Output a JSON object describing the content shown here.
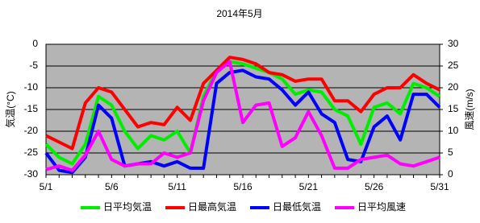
{
  "chart_data": {
    "type": "line",
    "title": "2014年5月",
    "ylabel": "気温(°C)",
    "y2label": "風速(m/s)",
    "categories": [
      "5/1",
      null,
      null,
      null,
      null,
      "5/6",
      null,
      null,
      null,
      null,
      "5/11",
      null,
      null,
      null,
      null,
      "5/16",
      null,
      null,
      null,
      null,
      "5/21",
      null,
      null,
      null,
      null,
      "5/26",
      null,
      null,
      null,
      null,
      "5/31"
    ],
    "ylim": [
      -30,
      0
    ],
    "yticks": [
      -30,
      -25,
      -20,
      -15,
      -10,
      -5,
      0
    ],
    "y2lim": [
      0,
      30
    ],
    "y2ticks": [
      0,
      5,
      10,
      15,
      20,
      25,
      30
    ],
    "grid": true,
    "legend": "bottom",
    "series": [
      {
        "name": "日平均気温",
        "color": "#00ee00",
        "values": [
          -23,
          -26,
          -27.5,
          -23,
          -12,
          -14,
          -20,
          -24,
          -21,
          -22,
          -20,
          -25,
          -12,
          -6,
          -4,
          -4.5,
          -5.5,
          -6.5,
          -8,
          -11.5,
          -10.5,
          -11,
          -15,
          -16.5,
          -23,
          -14.5,
          -13.5,
          -16,
          -9,
          -10,
          -12
        ]
      },
      {
        "name": "日最高気温",
        "color": "#ff0000",
        "values": [
          -21,
          -22.5,
          -24,
          -13.5,
          -10,
          -11,
          -15,
          -19,
          -18,
          -18.5,
          -14.5,
          -17.5,
          -9,
          -6,
          -3,
          -3.5,
          -4.5,
          -6.5,
          -7,
          -8.5,
          -8,
          -8,
          -13,
          -13,
          -15.5,
          -11.5,
          -10,
          -10,
          -7,
          -9,
          -10.5
        ]
      },
      {
        "name": "日最低気温",
        "color": "#0000ff",
        "values": [
          -25,
          -29,
          -29.5,
          -26,
          -14,
          -17,
          -28,
          -27.5,
          -27,
          -28,
          -27,
          -28.5,
          -28.5,
          -9,
          -6.5,
          -6,
          -7.5,
          -8,
          -10.5,
          -14,
          -11,
          -16,
          -18,
          -26.5,
          -27,
          -19,
          -16.5,
          -22,
          -11.5,
          -11.5,
          -14.5
        ]
      },
      {
        "name": "日平均風速",
        "color": "#ff00ff",
        "axis": "y2",
        "values": [
          1.2,
          2,
          1,
          4.5,
          10,
          3.5,
          2,
          2.5,
          2.5,
          5,
          4,
          5,
          17,
          23.5,
          26,
          12,
          16,
          16.5,
          6.5,
          8.5,
          14.5,
          9,
          1.5,
          1.5,
          3.5,
          4,
          4.5,
          2.5,
          2,
          3,
          4
        ]
      }
    ]
  }
}
